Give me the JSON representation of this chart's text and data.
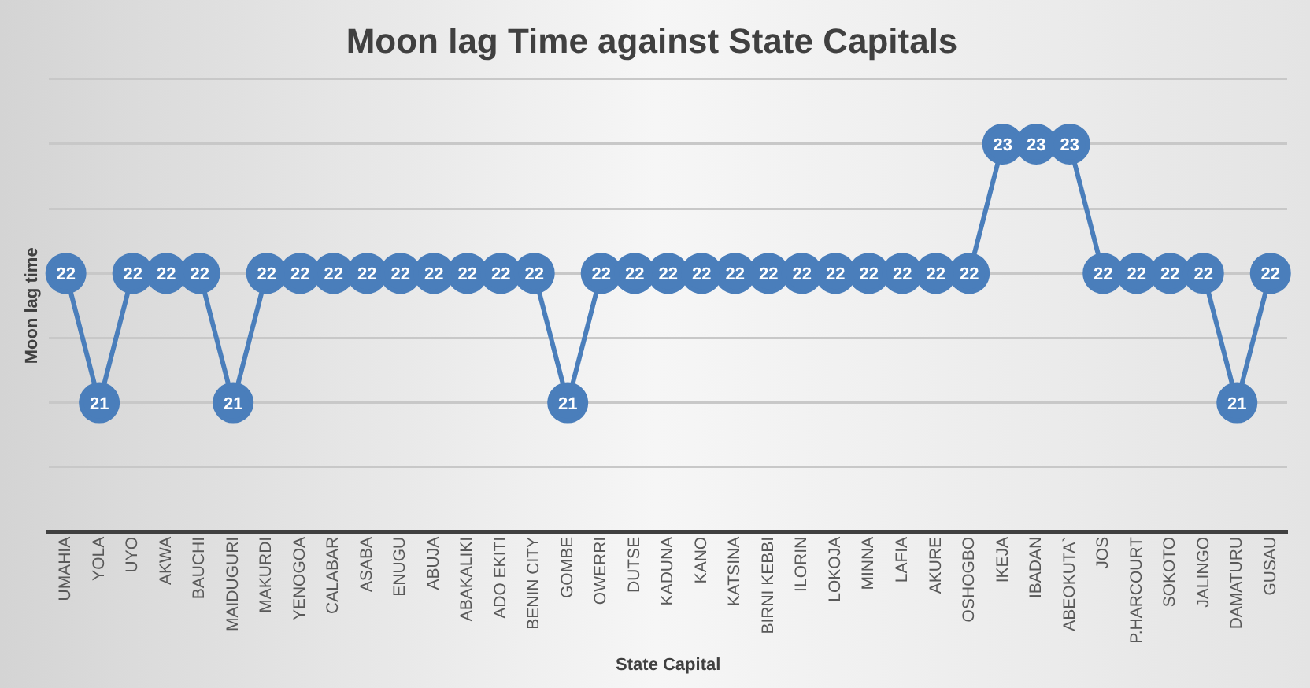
{
  "chart_data": {
    "type": "line",
    "title": "Moon lag Time against State Capitals",
    "xlabel": "State Capital",
    "ylabel": "Moon lag time",
    "categories": [
      "UMAHIA",
      "YOLA",
      "UYO",
      "AKWA",
      "BAUCHI",
      "MAIDUGURI",
      "MAKURDI",
      "YENOGOA",
      "CALABAR",
      "ASABA",
      "ENUGU",
      "ABUJA",
      "ABAKALIKI",
      "ADO EKITI",
      "BENIN CITY",
      "GOMBE",
      "OWERRI",
      "DUTSE",
      "KADUNA",
      "KANO",
      "KATSINA",
      "BIRNI KEBBI",
      "ILORIN",
      "LOKOJA",
      "MINNA",
      "LAFIA",
      "AKURE",
      "OSHOGBO",
      "IKEJA",
      "IBADAN",
      "ABEOKUTA`",
      "JOS",
      "P.HARCOURT",
      "SOKOTO",
      "JALINGO",
      "DAMATURU",
      "GUSAU"
    ],
    "series": [
      {
        "color": "#4a7ebb",
        "values": [
          22,
          21,
          22,
          22,
          22,
          21,
          22,
          22,
          22,
          22,
          22,
          22,
          22,
          22,
          22,
          21,
          22,
          22,
          22,
          22,
          22,
          22,
          22,
          22,
          22,
          22,
          22,
          22,
          23,
          23,
          23,
          22,
          22,
          22,
          22,
          21,
          22
        ]
      }
    ],
    "ylim": [
      20,
      23.5
    ],
    "yticks": [
      {
        "value": 20,
        "label": null
      },
      {
        "value": 20.5,
        "label": null
      },
      {
        "value": 21,
        "label": null
      },
      {
        "value": 21.5,
        "label": null
      },
      {
        "value": 22,
        "label": null
      },
      {
        "value": 22.5,
        "label": null
      },
      {
        "value": 23,
        "label": null
      },
      {
        "value": 23.5,
        "label": null
      }
    ],
    "tick_labels": "x",
    "grid": "y",
    "legend": false,
    "marker": "circle",
    "line_style": "solid",
    "data_labels": true
  }
}
